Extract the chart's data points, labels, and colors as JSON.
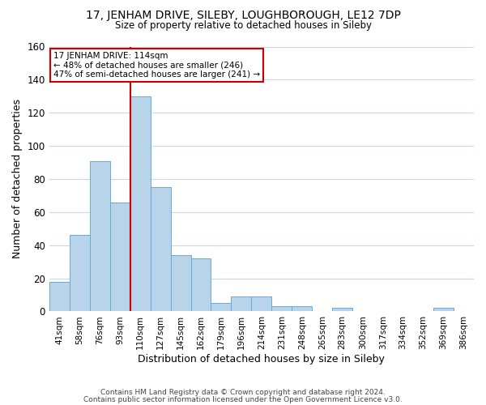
{
  "title_line1": "17, JENHAM DRIVE, SILEBY, LOUGHBOROUGH, LE12 7DP",
  "title_line2": "Size of property relative to detached houses in Sileby",
  "xlabel": "Distribution of detached houses by size in Sileby",
  "ylabel": "Number of detached properties",
  "bin_labels": [
    "41sqm",
    "58sqm",
    "76sqm",
    "93sqm",
    "110sqm",
    "127sqm",
    "145sqm",
    "162sqm",
    "179sqm",
    "196sqm",
    "214sqm",
    "231sqm",
    "248sqm",
    "265sqm",
    "283sqm",
    "300sqm",
    "317sqm",
    "334sqm",
    "352sqm",
    "369sqm",
    "386sqm"
  ],
  "bar_values": [
    18,
    46,
    91,
    66,
    130,
    75,
    34,
    32,
    5,
    9,
    9,
    3,
    3,
    0,
    2,
    0,
    0,
    0,
    0,
    2,
    0
  ],
  "bar_color": "#b8d4ea",
  "bar_edge_color": "#6aaad4",
  "highlight_line_index": 4,
  "highlight_color": "#cc0000",
  "annotation_title": "17 JENHAM DRIVE: 114sqm",
  "annotation_line1": "← 48% of detached houses are smaller (246)",
  "annotation_line2": "47% of semi-detached houses are larger (241) →",
  "ylim": [
    0,
    160
  ],
  "yticks": [
    0,
    20,
    40,
    60,
    80,
    100,
    120,
    140,
    160
  ],
  "footer_line1": "Contains HM Land Registry data © Crown copyright and database right 2024.",
  "footer_line2": "Contains public sector information licensed under the Open Government Licence v3.0.",
  "bg_color": "#ffffff",
  "grid_color": "#c8d8ec"
}
